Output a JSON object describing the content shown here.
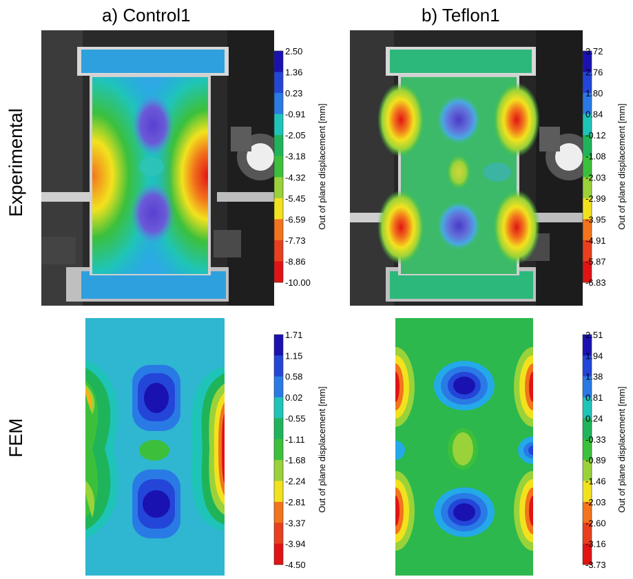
{
  "columns": [
    {
      "title": "a) Control1"
    },
    {
      "title": "b) Teflon1"
    }
  ],
  "rows": [
    {
      "label": "Experimental"
    },
    {
      "label": "FEM"
    }
  ],
  "colorbar_colors": [
    "#1a12b0",
    "#2346d8",
    "#2a7ae6",
    "#24a9e8",
    "#1fc4b8",
    "#1fb45a",
    "#3cc03c",
    "#9ad23a",
    "#f2e21e",
    "#f7b21a",
    "#f2741c",
    "#e8401e",
    "#e01414"
  ],
  "panels": [
    {
      "id": "control1-experimental",
      "colorbar": {
        "axis_label": "Out of plane displacement [mm]",
        "ticks": [
          "2.50",
          "1.36",
          "0.23",
          "-0.91",
          "-2.05",
          "-3.18",
          "-4.32",
          "-5.45",
          "-6.59",
          "-7.73",
          "-8.86",
          "-10.00"
        ]
      }
    },
    {
      "id": "teflon1-experimental",
      "colorbar": {
        "axis_label": "Out of plane displacement [mm]",
        "ticks": [
          "3.72",
          "2.76",
          "1.80",
          "0.84",
          "-0.12",
          "-1.08",
          "-2.03",
          "-2.99",
          "-3.95",
          "-4.91",
          "-5.87",
          "-6.83"
        ]
      }
    },
    {
      "id": "control1-fem",
      "colorbar": {
        "axis_label": "Out of plane displacement [mm]",
        "ticks": [
          "1.71",
          "1.15",
          "0.58",
          "0.02",
          "-0.55",
          "-1.11",
          "-1.68",
          "-2.24",
          "-2.81",
          "-3.37",
          "-3.94",
          "-4.50"
        ]
      }
    },
    {
      "id": "teflon1-fem",
      "colorbar": {
        "axis_label": "Out of plane displacement [mm]",
        "ticks": [
          "2.51",
          "1.94",
          "1.38",
          "0.81",
          "0.24",
          "-0.33",
          "-0.89",
          "-1.46",
          "-2.03",
          "-2.60",
          "-3.16",
          "-3.73"
        ]
      }
    }
  ]
}
